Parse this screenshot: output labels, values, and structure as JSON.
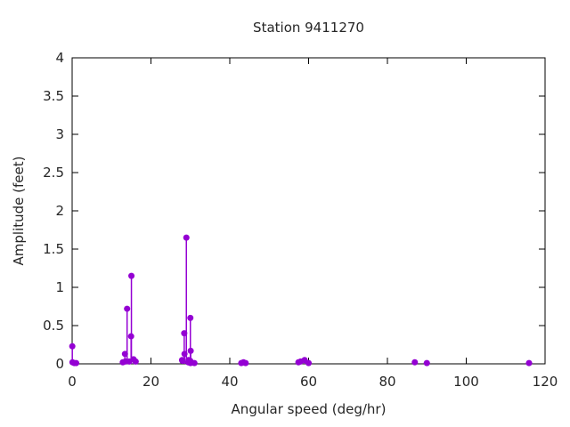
{
  "title": "Station 9411270",
  "colors": {
    "stem": "#9400d3",
    "axis": "#000000",
    "text": "#262626",
    "background": "#ffffff"
  },
  "chart_data": {
    "type": "scatter",
    "style": "stem-impulses-with-points",
    "title": "Station 9411270",
    "xlabel": "Angular speed (deg/hr)",
    "ylabel": "Amplitude (feet)",
    "xlim": [
      0,
      120
    ],
    "ylim": [
      0,
      4
    ],
    "xticks": [
      0,
      20,
      40,
      60,
      80,
      100,
      120
    ],
    "yticks": [
      0,
      0.5,
      1,
      1.5,
      2,
      2.5,
      3,
      3.5,
      4
    ],
    "grid": false,
    "legend": "none",
    "marker_color": "#9400d3",
    "points": [
      [
        0.041,
        0.23
      ],
      [
        0.082,
        0.02
      ],
      [
        0.544,
        0.01
      ],
      [
        1.016,
        0.01
      ],
      [
        12.854,
        0.02
      ],
      [
        13.399,
        0.13
      ],
      [
        13.472,
        0.03
      ],
      [
        13.943,
        0.72
      ],
      [
        14.497,
        0.03
      ],
      [
        14.959,
        0.36
      ],
      [
        15.041,
        1.15
      ],
      [
        15.585,
        0.06
      ],
      [
        16.139,
        0.03
      ],
      [
        27.895,
        0.05
      ],
      [
        27.968,
        0.04
      ],
      [
        28.44,
        0.4
      ],
      [
        28.512,
        0.13
      ],
      [
        28.984,
        1.65
      ],
      [
        29.456,
        0.02
      ],
      [
        29.528,
        0.05
      ],
      [
        29.959,
        0.04
      ],
      [
        30.0,
        0.6
      ],
      [
        30.041,
        0.01
      ],
      [
        30.082,
        0.17
      ],
      [
        31.016,
        0.01
      ],
      [
        42.927,
        0.01
      ],
      [
        43.476,
        0.02
      ],
      [
        44.025,
        0.01
      ],
      [
        57.424,
        0.02
      ],
      [
        57.968,
        0.03
      ],
      [
        58.984,
        0.05
      ],
      [
        60.0,
        0.01
      ],
      [
        86.952,
        0.02
      ],
      [
        90.0,
        0.01
      ],
      [
        115.936,
        0.01
      ]
    ]
  }
}
